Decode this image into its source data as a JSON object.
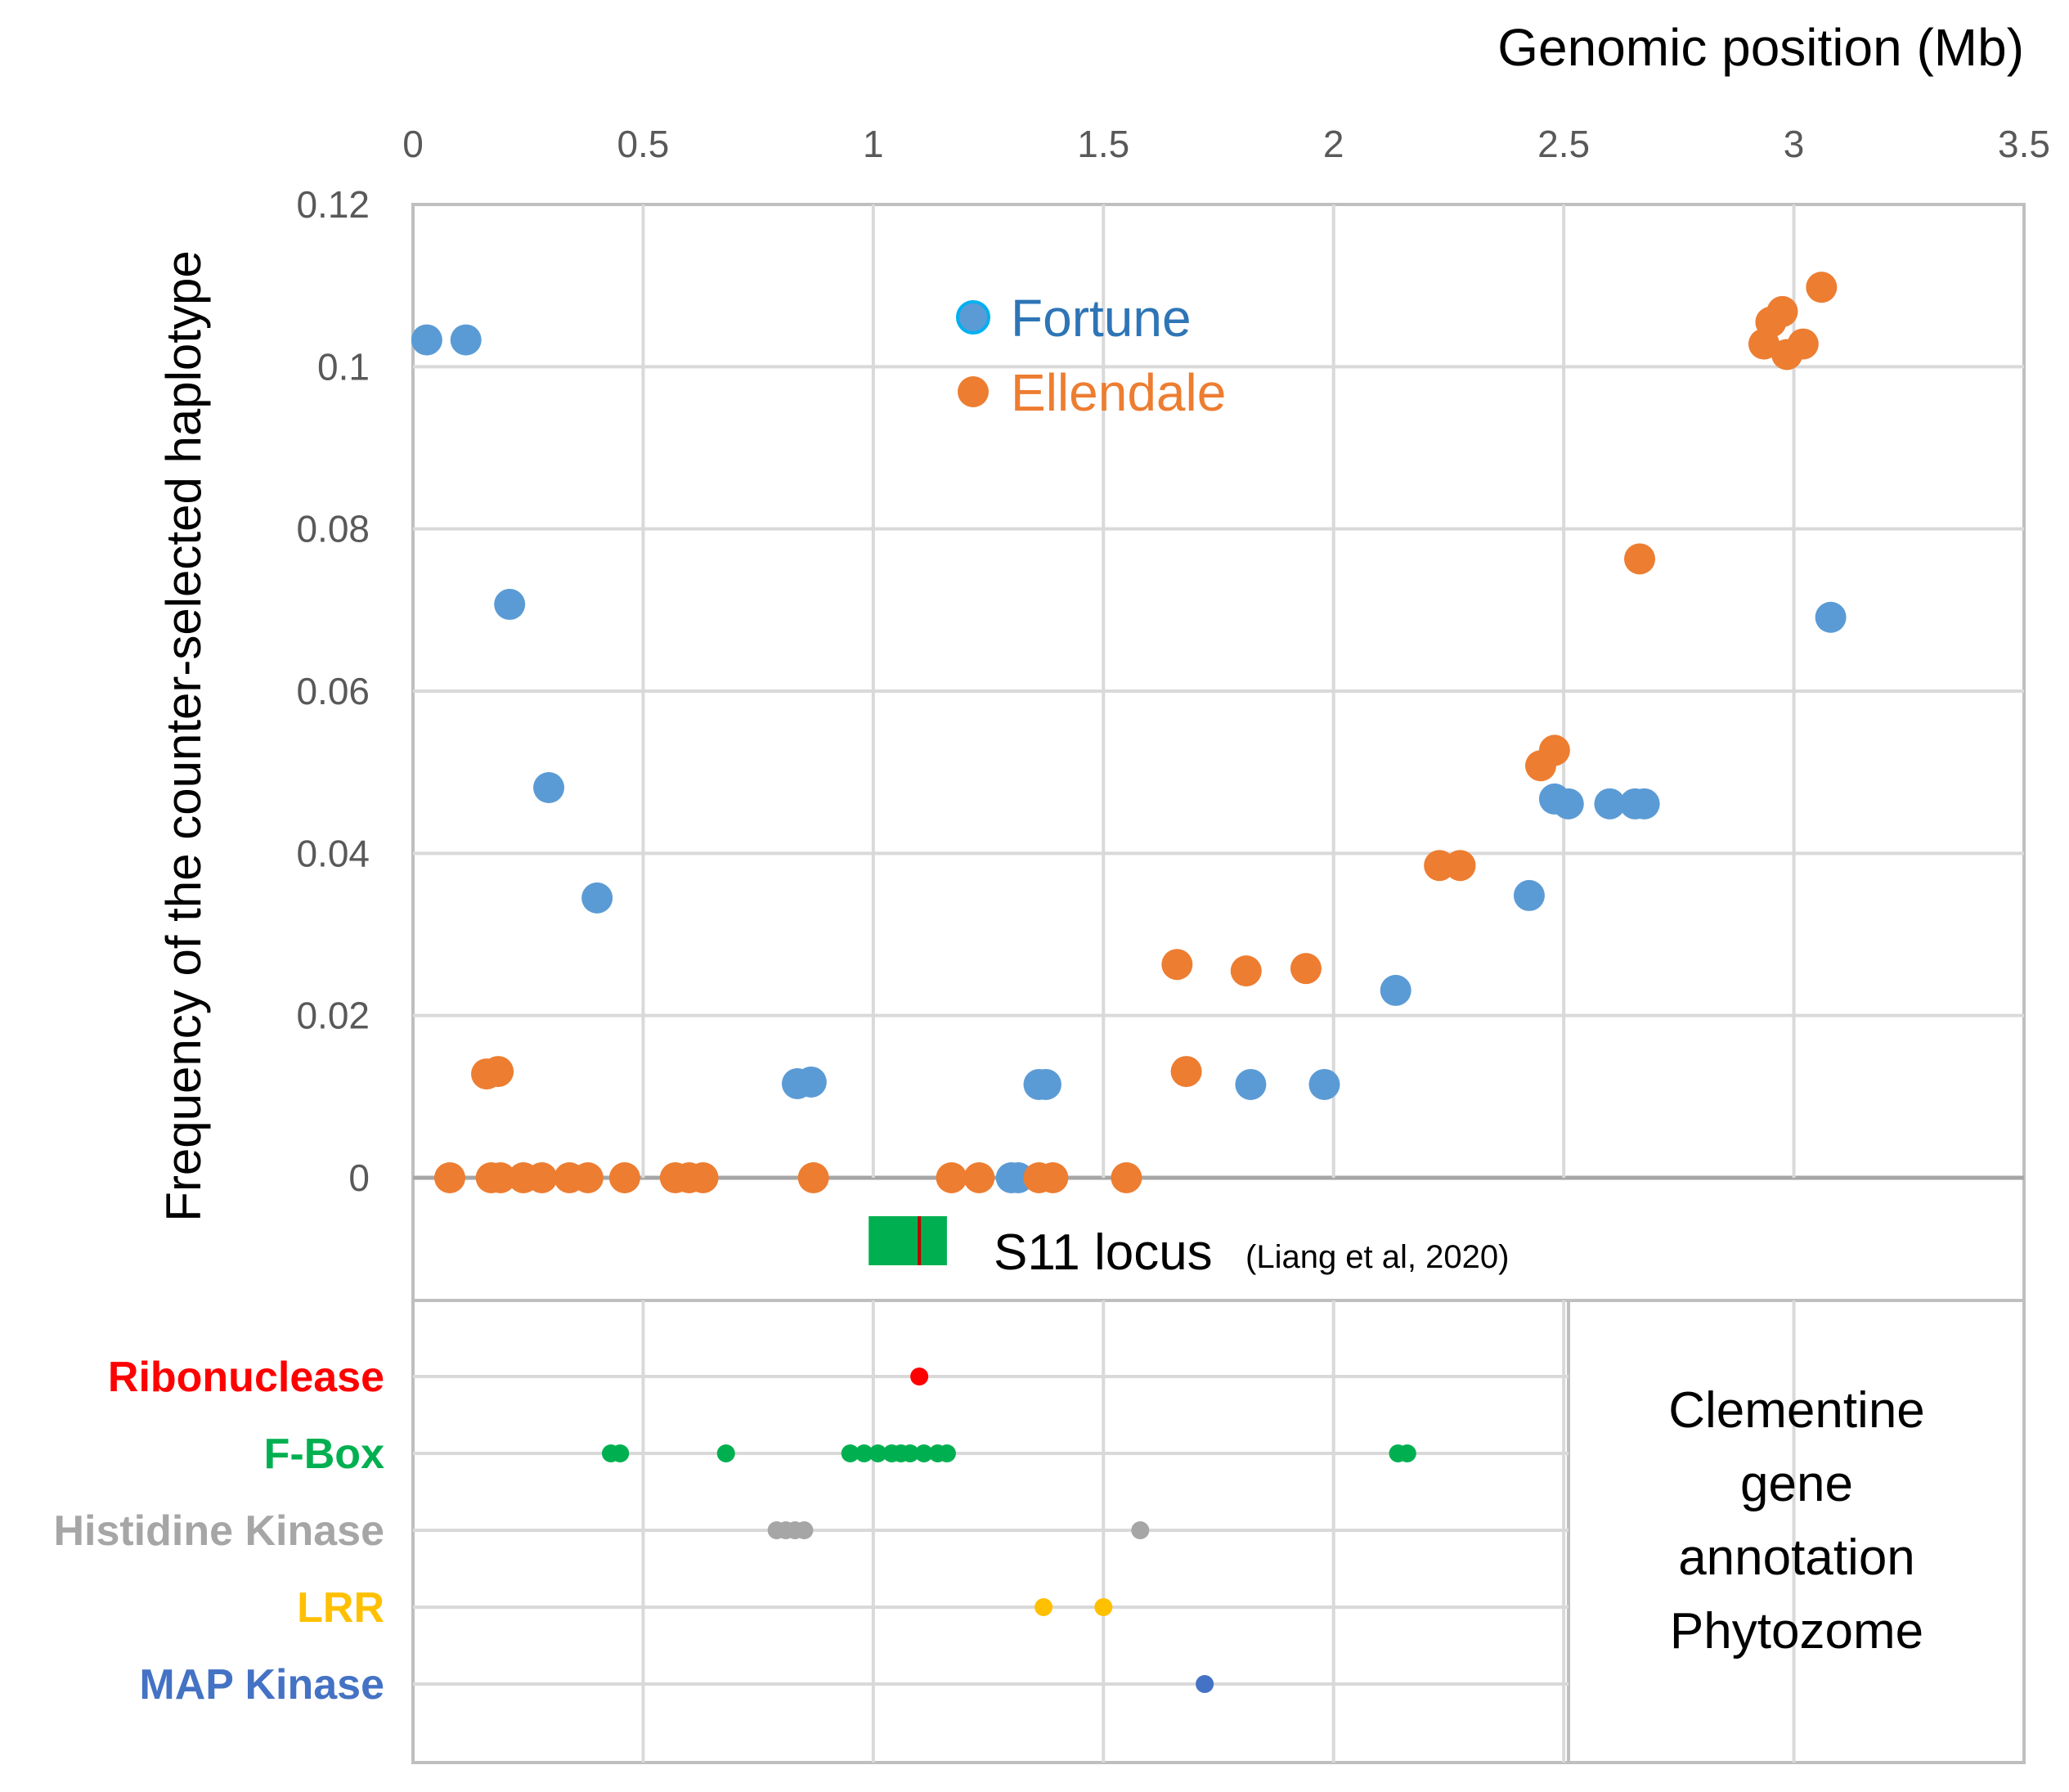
{
  "chart_data": {
    "type": "scatter",
    "xlabel": "Genomic position (Mb)",
    "ylabel": "Frequency of the counter-selected haplotype",
    "xlim": [
      0,
      3.5
    ],
    "ylim": [
      0,
      0.12
    ],
    "x_ticks": [
      "0",
      "0.5",
      "1",
      "1.5",
      "2",
      "2.5",
      "3",
      "3.5"
    ],
    "y_ticks": [
      "0",
      "0.02",
      "0.04",
      "0.06",
      "0.08",
      "0.1",
      "0.12"
    ],
    "grid": true,
    "legend_position": "top-center",
    "series": [
      {
        "name": "Fortune",
        "color": "#5b9bd5",
        "label_color": "#2e75b6",
        "points": [
          [
            0.03,
            0.1033
          ],
          [
            0.115,
            0.1033
          ],
          [
            0.21,
            0.0707
          ],
          [
            0.295,
            0.0481
          ],
          [
            0.4,
            0.0345
          ],
          [
            0.835,
            0.0116
          ],
          [
            0.865,
            0.0118
          ],
          [
            1.3,
            0.0
          ],
          [
            1.315,
            0.0
          ],
          [
            1.36,
            0.0115
          ],
          [
            1.375,
            0.0115
          ],
          [
            1.82,
            0.0115
          ],
          [
            1.98,
            0.0115
          ],
          [
            2.135,
            0.0231
          ],
          [
            2.425,
            0.0348
          ],
          [
            2.48,
            0.0467
          ],
          [
            2.51,
            0.0461
          ],
          [
            2.6,
            0.0461
          ],
          [
            2.655,
            0.0461
          ],
          [
            2.675,
            0.0461
          ],
          [
            3.08,
            0.0691
          ]
        ]
      },
      {
        "name": "Ellendale",
        "color": "#ed7d31",
        "label_color": "#ed7d31",
        "points": [
          [
            0.08,
            0.0
          ],
          [
            0.17,
            0.0
          ],
          [
            0.19,
            0.0
          ],
          [
            0.24,
            0.0
          ],
          [
            0.28,
            0.0
          ],
          [
            0.34,
            0.0
          ],
          [
            0.38,
            0.0
          ],
          [
            0.46,
            0.0
          ],
          [
            0.57,
            0.0
          ],
          [
            0.6,
            0.0
          ],
          [
            0.63,
            0.0
          ],
          [
            0.87,
            0.0
          ],
          [
            1.17,
            0.0
          ],
          [
            1.23,
            0.0
          ],
          [
            1.36,
            0.0
          ],
          [
            1.39,
            0.0
          ],
          [
            1.55,
            0.0
          ],
          [
            0.16,
            0.0128
          ],
          [
            0.185,
            0.0131
          ],
          [
            1.66,
            0.0263
          ],
          [
            1.68,
            0.0131
          ],
          [
            1.81,
            0.0255
          ],
          [
            1.94,
            0.0258
          ],
          [
            2.23,
            0.0385
          ],
          [
            2.275,
            0.0385
          ],
          [
            2.45,
            0.0508
          ],
          [
            2.48,
            0.0527
          ],
          [
            2.665,
            0.0763
          ],
          [
            2.935,
            0.1028
          ],
          [
            2.95,
            0.1055
          ],
          [
            2.975,
            0.1068
          ],
          [
            2.985,
            0.1015
          ],
          [
            3.02,
            0.1028
          ],
          [
            3.06,
            0.1098
          ]
        ]
      }
    ],
    "annotation_track": {
      "label": "S11 locus",
      "citation": "(Liang et al, 2020)",
      "bar_start_mb": 0.99,
      "bar_end_mb": 1.16,
      "bar_color": "#00b050",
      "marker_mb": 1.1,
      "marker_color": "#c00000"
    },
    "gene_tracks": [
      {
        "name": "Ribonuclease",
        "color": "#ff0000",
        "positions": [
          1.1
        ]
      },
      {
        "name": "F-Box",
        "color": "#00b050",
        "positions": [
          0.43,
          0.45,
          0.68,
          0.95,
          0.98,
          1.01,
          1.04,
          1.06,
          1.08,
          1.11,
          1.14,
          1.16,
          2.14,
          2.16
        ]
      },
      {
        "name": "Histidine Kinase",
        "color": "#a6a6a6",
        "positions": [
          0.79,
          0.81,
          0.83,
          0.85,
          1.58
        ]
      },
      {
        "name": "LRR",
        "color": "#ffc000",
        "positions": [
          1.37,
          1.5
        ]
      },
      {
        "name": "MAP Kinase",
        "color": "#4472c4",
        "positions": [
          1.72
        ]
      }
    ],
    "annotation_source": {
      "line1": "Clementine",
      "line2": "gene",
      "line3": "annotation",
      "line4": "Phytozome"
    }
  }
}
